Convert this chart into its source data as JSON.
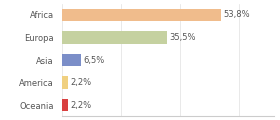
{
  "categories": [
    "Africa",
    "Europa",
    "Asia",
    "America",
    "Oceania"
  ],
  "values": [
    53.8,
    35.5,
    6.5,
    2.2,
    2.2
  ],
  "labels": [
    "53,8%",
    "35,5%",
    "6,5%",
    "2,2%",
    "2,2%"
  ],
  "bar_colors": [
    "#f0bc8c",
    "#c5d1a0",
    "#7b8ec8",
    "#f0d080",
    "#d94040"
  ],
  "background_color": "#ffffff",
  "text_color": "#555555",
  "label_fontsize": 6.0,
  "tick_fontsize": 6.0,
  "xlim": [
    0,
    72
  ],
  "bar_height": 0.55
}
